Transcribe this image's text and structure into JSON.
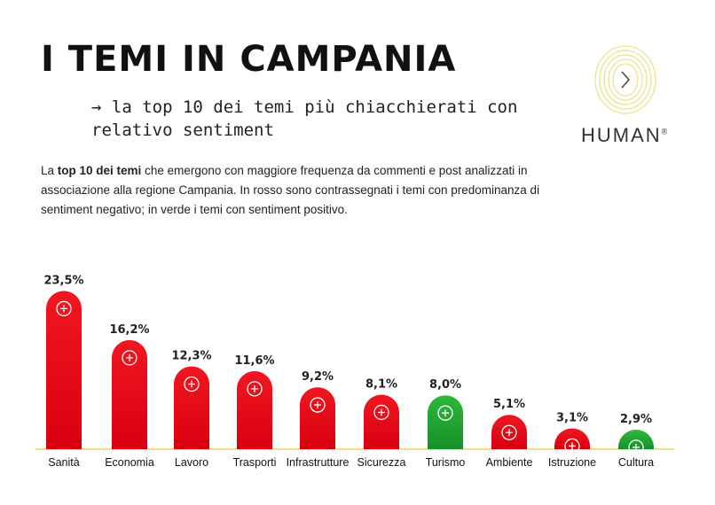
{
  "header": {
    "title": "I TEMI IN CAMPANIA",
    "subtitle": "→ la top 10 dei temi più chiacchierati con relativo sentiment",
    "brand": "HUMAN",
    "brand_mark": "®"
  },
  "description": {
    "before": "La ",
    "bold": "top 10 dei temi",
    "after": " che emergono con maggiore frequenza da commenti e post analizzati in associazione alla regione Campania. In rosso sono contrassegnati i temi con predominanza di sentiment negativo; in verde i temi con sentiment positivo."
  },
  "colors": {
    "negative": "#e8101e",
    "positive": "#1fa32e",
    "baseline": "#f0e08a"
  },
  "chart_data": {
    "type": "bar",
    "title": "",
    "xlabel": "",
    "ylabel": "",
    "ylim": [
      0,
      25
    ],
    "grid": false,
    "categories": [
      "Sanità",
      "Economia",
      "Lavoro",
      "Trasporti",
      "Infrastrutture",
      "Sicurezza",
      "Turismo",
      "Ambiente",
      "Istruzione",
      "Cultura"
    ],
    "values": [
      23.5,
      16.2,
      12.3,
      11.6,
      9.2,
      8.1,
      8.0,
      5.1,
      3.1,
      2.9
    ],
    "labels": [
      "23,5%",
      "16,2%",
      "12,3%",
      "11,6%",
      "9,2%",
      "8,1%",
      "8,0%",
      "5,1%",
      "3,1%",
      "2,9%"
    ],
    "sentiment": [
      "negative",
      "negative",
      "negative",
      "negative",
      "negative",
      "negative",
      "positive",
      "negative",
      "negative",
      "positive"
    ],
    "icons": [
      "healthcare-icon",
      "chart-growth-icon",
      "briefcase-icon",
      "route-icon",
      "industry-gear-icon",
      "shield-check-icon",
      "travel-icon",
      "eco-globe-icon",
      "book-icon",
      "globe-people-icon"
    ]
  }
}
